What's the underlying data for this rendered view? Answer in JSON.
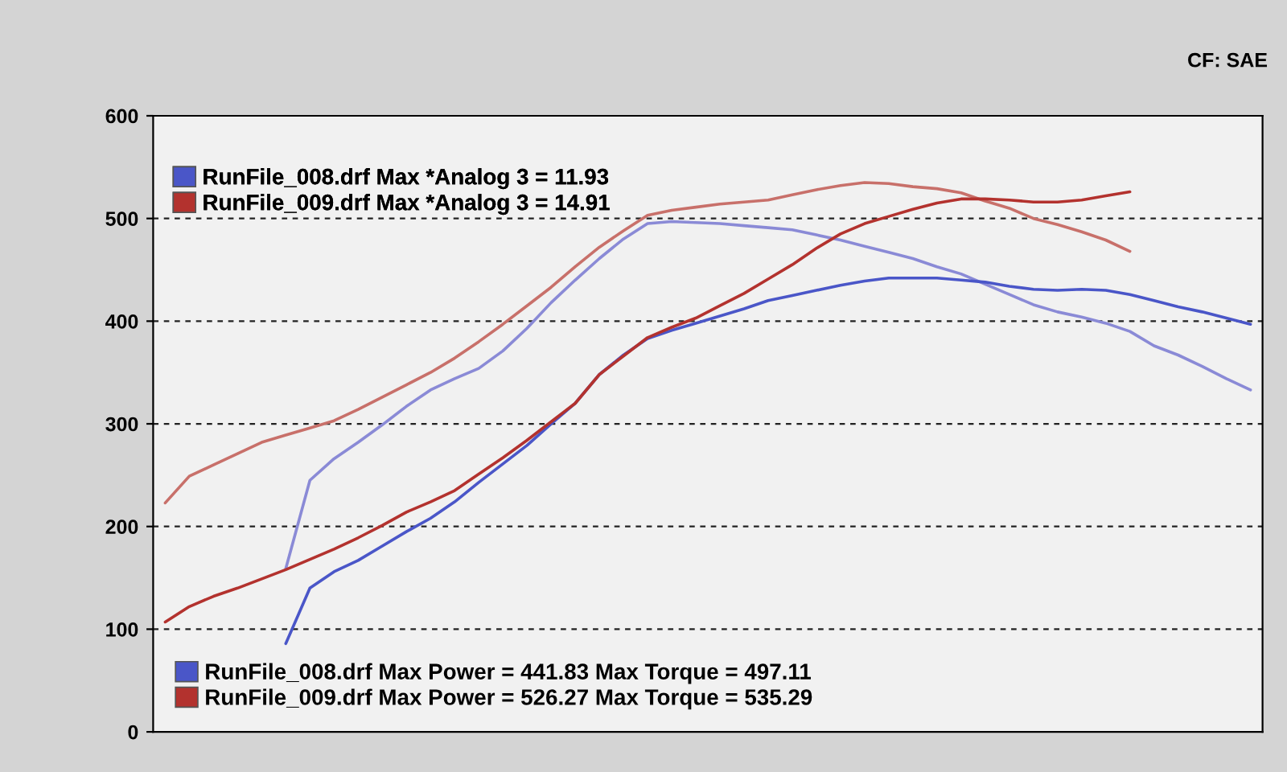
{
  "chart_data": {
    "type": "line",
    "categories": [
      null,
      null,
      null,
      null,
      null,
      null,
      null,
      null,
      null,
      null,
      null,
      null,
      null,
      null,
      null,
      null,
      null,
      null,
      null,
      null,
      null,
      null,
      null,
      null,
      null,
      null,
      null,
      null,
      null,
      null,
      null,
      null,
      null,
      null,
      null,
      null,
      null,
      null,
      null,
      null,
      null,
      null,
      null,
      null,
      null,
      null
    ],
    "series": [
      {
        "color": "#8a8ad6",
        "values": [
          null,
          null,
          null,
          null,
          null,
          159,
          245,
          266,
          282,
          299,
          317,
          333,
          344,
          354,
          371,
          393,
          418,
          440,
          461,
          480,
          495,
          497,
          496,
          495,
          493,
          491,
          489,
          484,
          479,
          473,
          467,
          461,
          453,
          446,
          436,
          426,
          416,
          409,
          404,
          398,
          390,
          376,
          367,
          356,
          344,
          333
        ]
      },
      {
        "name": "RunFile_008.drf Max Power = 441.83 Max Torque = 497.11",
        "color": "#4a56c8",
        "values": [
          null,
          null,
          null,
          null,
          null,
          86,
          140,
          156,
          167,
          181,
          195,
          208,
          224,
          243,
          261,
          279,
          300,
          320,
          348,
          367,
          383,
          391,
          398,
          405,
          412,
          420,
          425,
          430,
          435,
          439,
          442,
          442,
          442,
          440,
          438,
          434,
          431,
          430,
          431,
          430,
          426,
          420,
          414,
          409,
          403,
          397
        ]
      },
      {
        "color": "#c8706a",
        "values": [
          223,
          249,
          260,
          271,
          282,
          289,
          296,
          303,
          314,
          326,
          338,
          350,
          364,
          380,
          397,
          415,
          433,
          453,
          472,
          488,
          503,
          508,
          511,
          514,
          516,
          518,
          523,
          528,
          532,
          535,
          534,
          531,
          529,
          525,
          517,
          510,
          500,
          494,
          487,
          479,
          468,
          null,
          null,
          null,
          null,
          null
        ]
      },
      {
        "name": "RunFile_009.drf Max Power = 526.27 Max Torque = 535.29",
        "color": "#b3322e",
        "values": [
          107,
          122,
          132,
          140,
          149,
          158,
          168,
          178,
          189,
          201,
          214,
          224,
          235,
          251,
          267,
          284,
          302,
          320,
          348,
          366,
          384,
          394,
          403,
          415,
          427,
          441,
          455,
          471,
          485,
          495,
          502,
          509,
          515,
          519,
          519,
          518,
          516,
          516,
          518,
          522,
          526,
          null,
          null,
          null,
          null,
          null
        ]
      }
    ],
    "ylim": [
      0,
      600
    ],
    "yticks": [
      0,
      100,
      200,
      300,
      400,
      500,
      600
    ],
    "grid": "y",
    "tick_labels": "y",
    "legend": "bottom left",
    "line_style": "solid",
    "annotations": [
      "RunFile_008.drf Max *Analog 3 = 11.93",
      "RunFile_009.drf Max *Analog 3 = 14.91",
      "CF: SAE"
    ]
  }
}
